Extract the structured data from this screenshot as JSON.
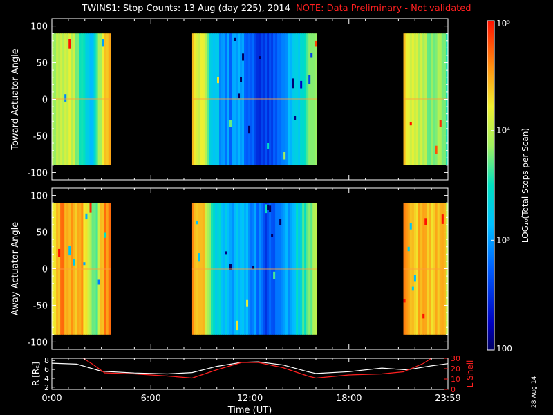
{
  "header": {
    "title": "TWINS1: Stop Counts: 13 Aug (day 225), 2014",
    "note": "NOTE: Data Preliminary - Not validated"
  },
  "date_stamp": "28 Aug 14",
  "colors": {
    "background": "#000000",
    "axis": "#ffffff",
    "note": "#ff2020",
    "r_line": "#ffffff",
    "lshell_line": "#ff2020"
  },
  "chart_data": [
    {
      "type": "heatmap",
      "title": "",
      "ylabel": "Toward Actuator Angle",
      "xlabel": "",
      "ylim": [
        -110,
        110
      ],
      "y_data_range": [
        -90,
        90
      ],
      "yticks": [
        100,
        50,
        0,
        -50,
        -100
      ],
      "xlim": [
        0,
        24
      ],
      "xticks": [
        0,
        6,
        12,
        18,
        24
      ],
      "colormap": "rainbow",
      "color_scale": "log",
      "clim": [
        100,
        100000
      ],
      "data_blocks": [
        {
          "x_start": 0.0,
          "x_end": 3.55,
          "mean_log10": [
            3.9,
            4.1,
            4.0,
            4.2,
            3.8,
            3.6,
            3.4,
            3.2,
            3.7,
            4.3,
            4.5
          ]
        },
        {
          "x_start": 8.5,
          "x_end": 16.05,
          "mean_log10": [
            4.3,
            4.1,
            3.3,
            3.0,
            2.9,
            3.0,
            2.8,
            2.6,
            2.5,
            2.7,
            3.0,
            3.3,
            3.6,
            3.9
          ]
        },
        {
          "x_start": 21.3,
          "x_end": 24.0,
          "mean_log10": [
            4.4,
            4.2,
            4.0,
            3.9,
            3.8,
            3.9,
            3.7
          ]
        }
      ]
    },
    {
      "type": "heatmap",
      "title": "",
      "ylabel": "Away Actuator Angle",
      "xlabel": "",
      "ylim": [
        -110,
        110
      ],
      "y_data_range": [
        -90,
        90
      ],
      "yticks": [
        100,
        50,
        0,
        -50,
        -100
      ],
      "xlim": [
        0,
        24
      ],
      "xticks": [
        0,
        6,
        12,
        18,
        24
      ],
      "colormap": "rainbow",
      "color_scale": "log",
      "clim": [
        100,
        100000
      ],
      "data_blocks": [
        {
          "x_start": 0.0,
          "x_end": 3.55,
          "mean_log10": [
            4.1,
            4.5,
            4.6,
            4.5,
            4.4,
            4.6,
            4.2,
            3.6,
            3.9,
            4.6,
            4.7
          ]
        },
        {
          "x_start": 8.5,
          "x_end": 16.05,
          "mean_log10": [
            4.6,
            4.4,
            3.5,
            3.3,
            3.1,
            3.2,
            3.0,
            2.8,
            2.6,
            2.7,
            3.0,
            3.3,
            3.6,
            3.9
          ]
        },
        {
          "x_start": 21.3,
          "x_end": 24.0,
          "mean_log10": [
            4.6,
            4.5,
            4.4,
            4.5,
            4.3,
            4.4,
            4.2
          ]
        }
      ]
    },
    {
      "type": "line",
      "title": "",
      "xlabel": "Time (UT)",
      "ylabel": "R [Rₑ]",
      "ylabel_right": "L Shell",
      "xlim": [
        0,
        24
      ],
      "xticks": [
        0,
        6,
        12,
        18,
        24
      ],
      "xtick_labels": [
        "0:00",
        "6:00",
        "12:00",
        "18:00",
        "23:59"
      ],
      "ylim": [
        1.5,
        8.5
      ],
      "yticks": [
        2,
        4,
        6,
        8
      ],
      "ylim_right": [
        0,
        30
      ],
      "yticks_right": [
        0,
        10,
        20,
        30
      ],
      "series": [
        {
          "axis": "left",
          "x": [
            0,
            1.5,
            3.0,
            5.0,
            7.0,
            8.5,
            10.0,
            11.5,
            12.5,
            14.0,
            15.5,
            16.0,
            18.0,
            20.0,
            21.5,
            23.0,
            24.0
          ],
          "y": [
            7.4,
            7.2,
            5.6,
            5.2,
            5.0,
            5.3,
            6.7,
            7.6,
            7.7,
            7.0,
            5.5,
            5.1,
            5.5,
            6.3,
            5.9,
            6.8,
            7.3
          ]
        },
        {
          "axis": "right",
          "x": [
            1.9,
            2.5,
            3.2,
            5.0,
            7.0,
            8.5,
            10.0,
            11.5,
            12.5,
            14.0,
            15.5,
            16.0,
            18.0,
            20.0,
            21.3,
            22.5,
            23.0
          ],
          "y": [
            30,
            24,
            16,
            15,
            13,
            11,
            19,
            26,
            26,
            21,
            13,
            11,
            14,
            15,
            17,
            25,
            30
          ]
        }
      ]
    }
  ],
  "colorbar": {
    "label": "LOG₁₀(Total Stops per Scan)",
    "ticks": [
      {
        "value": 100000,
        "label": "10⁵"
      },
      {
        "value": 10000,
        "label": "10⁴"
      },
      {
        "value": 1000,
        "label": "10³"
      },
      {
        "value": 100,
        "label": "100"
      }
    ]
  }
}
